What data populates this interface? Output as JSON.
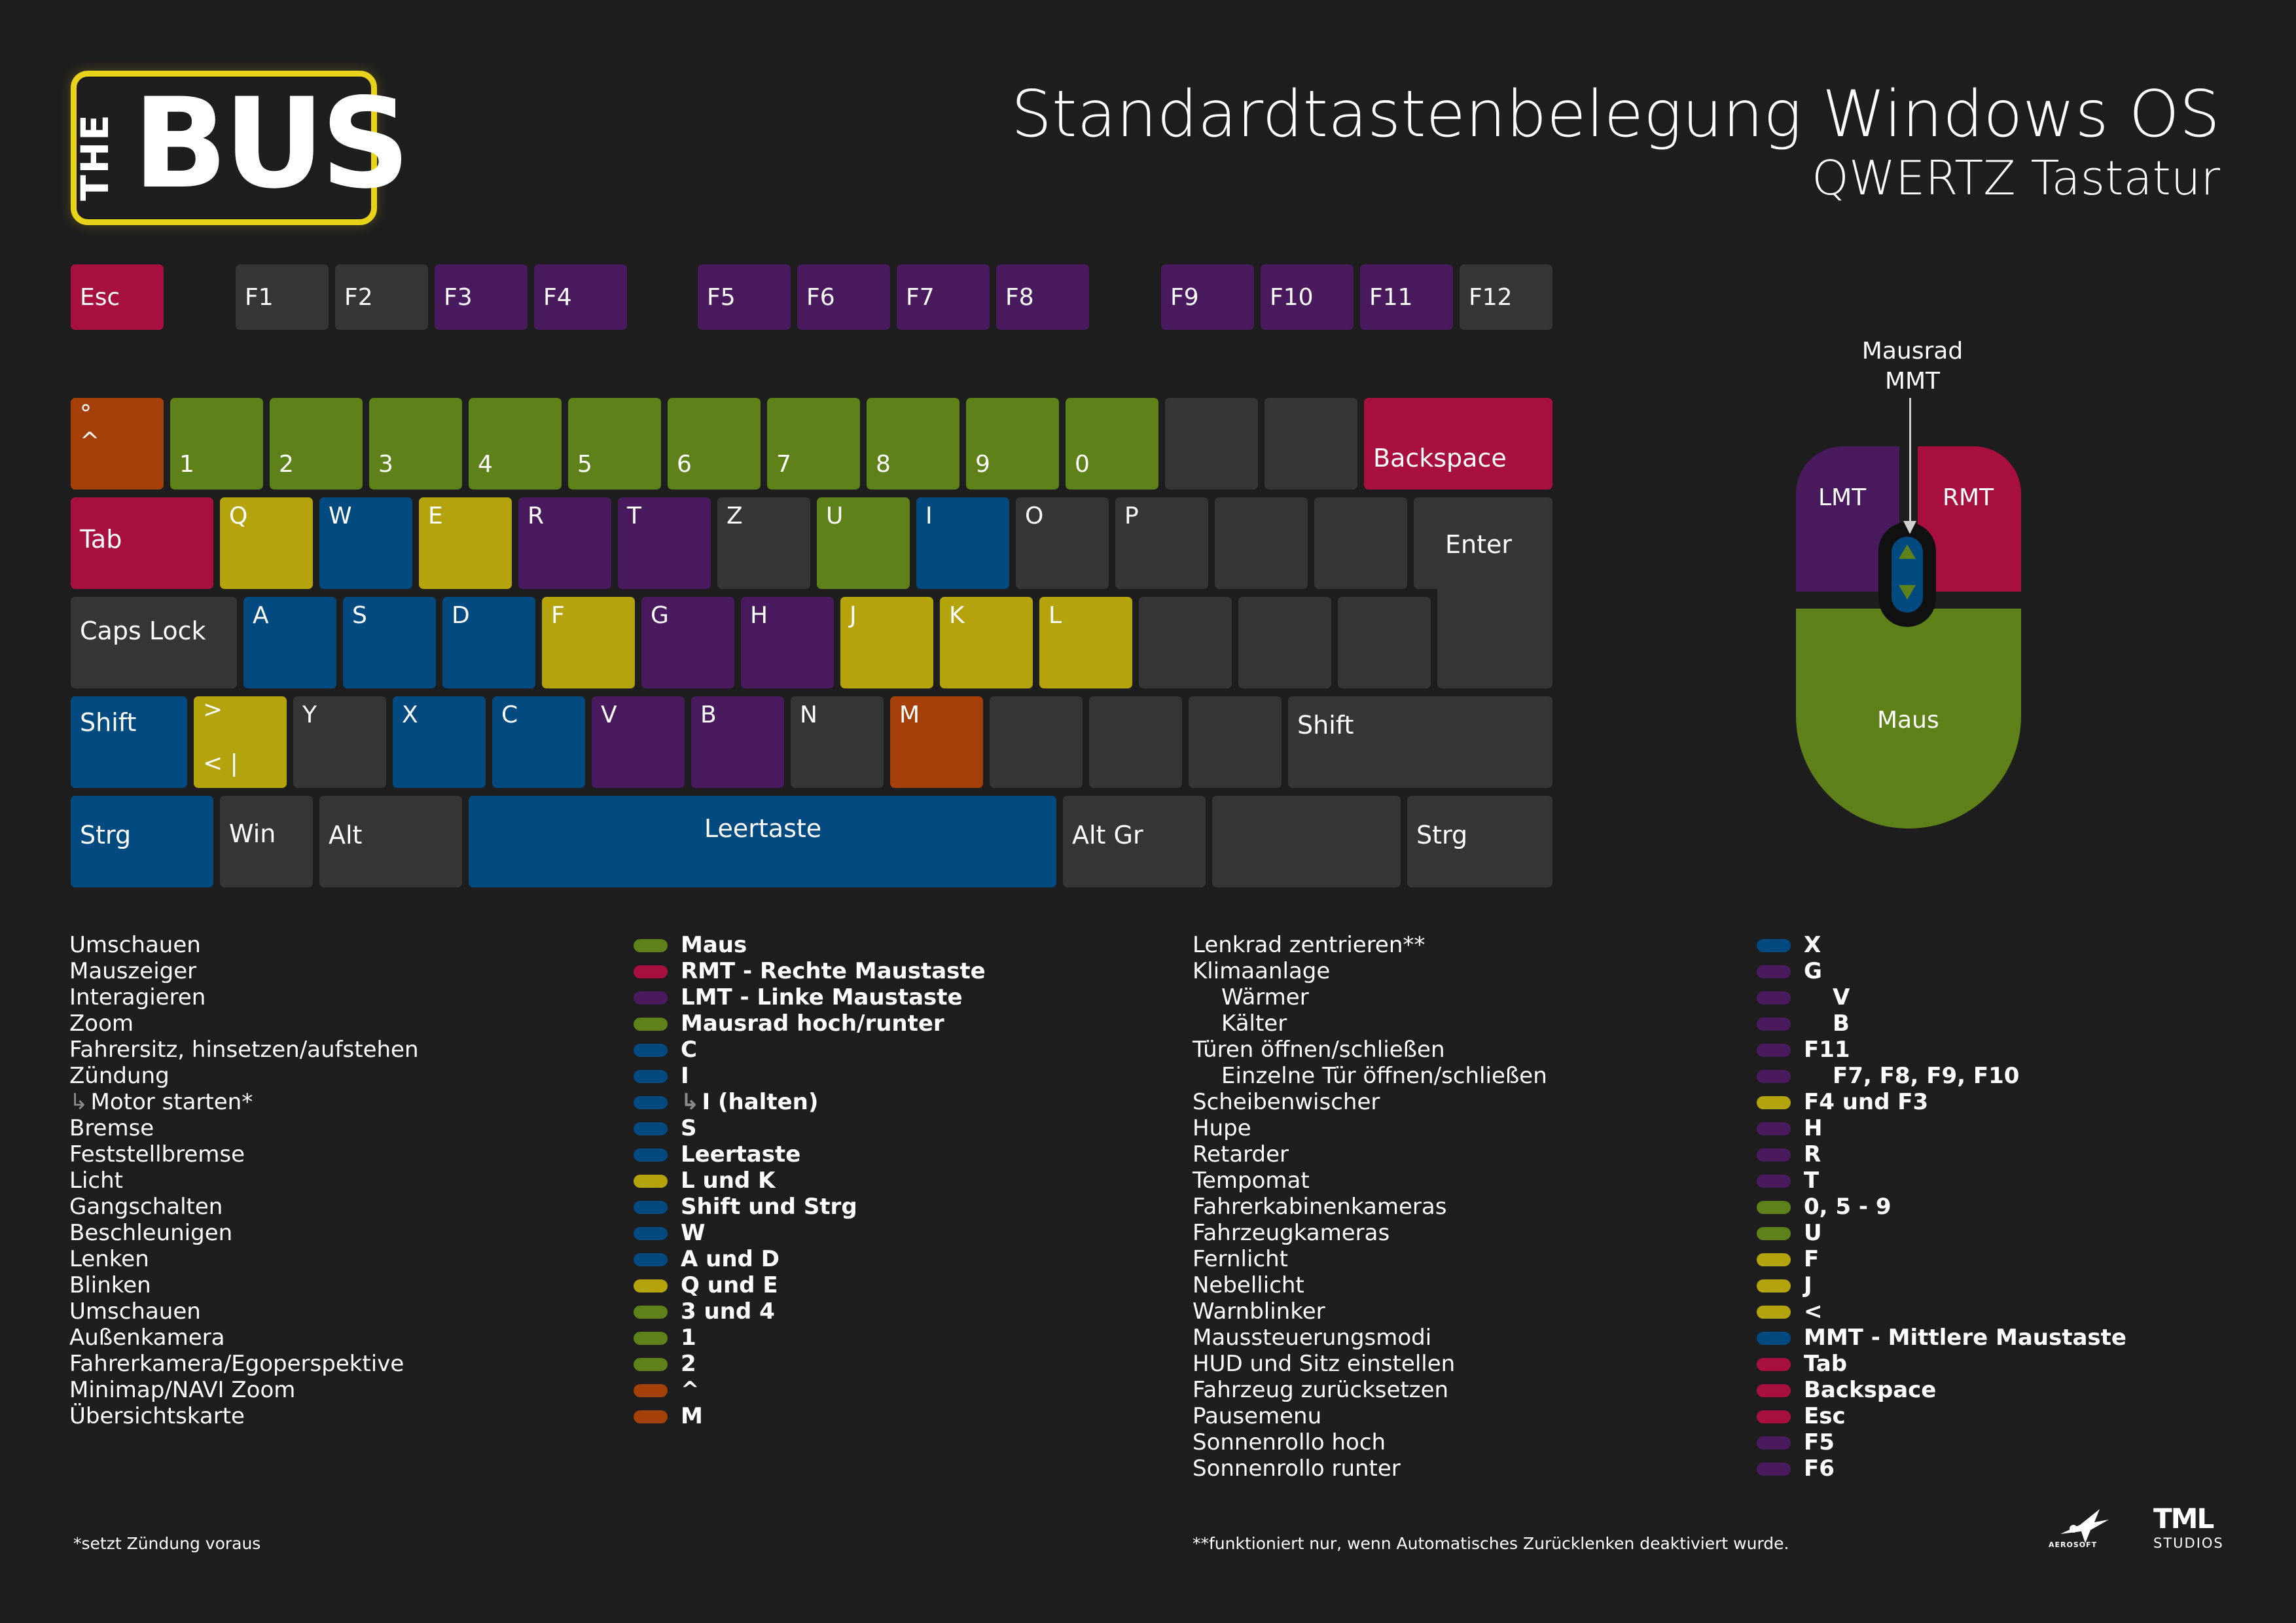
{
  "logo": {
    "the": "THE",
    "bus": "BUS"
  },
  "header": {
    "title": "Standardtastenbelegung Windows OS",
    "subtitle": "QWERTZ Tastatur"
  },
  "colors": {
    "dark": "#373637",
    "red": "#a8103f",
    "purple": "#4a1a5e",
    "green": "#5e8219",
    "blue": "#034a80",
    "yellow": "#b5a30e",
    "orange": "#a5400a",
    "background": "#1f1e1f"
  },
  "keys": {
    "esc": "Esc",
    "f1": "F1",
    "f2": "F2",
    "f3": "F3",
    "f4": "F4",
    "f5": "F5",
    "f6": "F6",
    "f7": "F7",
    "f8": "F8",
    "f9": "F9",
    "f10": "F10",
    "f11": "F11",
    "f12": "F12",
    "caret_top": "°",
    "caret_bottom": "^",
    "n1": "1",
    "n2": "2",
    "n3": "3",
    "n4": "4",
    "n5": "5",
    "n6": "6",
    "n7": "7",
    "n8": "8",
    "n9": "9",
    "n0": "0",
    "backspace": "Backspace",
    "tab": "Tab",
    "q": "Q",
    "w": "W",
    "e": "E",
    "r": "R",
    "t": "T",
    "z": "Z",
    "u": "U",
    "i": "I",
    "o": "O",
    "p": "P",
    "enter": "Enter",
    "capslock": "Caps Lock",
    "a": "A",
    "s": "S",
    "d": "D",
    "f": "F",
    "g": "G",
    "h": "H",
    "j": "J",
    "k": "K",
    "l": "L",
    "shift_left": "Shift",
    "angle_top": ">",
    "angle_bottom": "<  |",
    "y": "Y",
    "x": "X",
    "c": "C",
    "v": "V",
    "b": "B",
    "n": "N",
    "m": "M",
    "shift_right": "Shift",
    "strg_left": "Strg",
    "win": "Win",
    "alt": "Alt",
    "space": "Leertaste",
    "altgr": "Alt Gr",
    "strg_right": "Strg"
  },
  "mouse": {
    "wheel_label": "Mausrad",
    "wheel_abbr": "MMT",
    "lmt": "LMT",
    "rmt": "RMT",
    "body": "Maus"
  },
  "legend_left": [
    {
      "action": "Umschauen",
      "key": "Maus",
      "color": "#5e8219"
    },
    {
      "action": "Mauszeiger",
      "key": "RMT - Rechte Maustaste",
      "color": "#a8103f"
    },
    {
      "action": "Interagieren",
      "key": "LMT - Linke Maustaste",
      "color": "#4a1a5e"
    },
    {
      "action": "Zoom",
      "key": "Mausrad hoch/runter",
      "color": "#5e8219"
    },
    {
      "action": "Fahrersitz, hinsetzen/aufstehen",
      "key": "C",
      "color": "#034a80"
    },
    {
      "action": "Zündung",
      "key": "I",
      "color": "#034a80"
    },
    {
      "action": "Motor starten*",
      "key": "I (halten)",
      "color": "#034a80"
    },
    {
      "action": "Bremse",
      "key": "S",
      "color": "#034a80"
    },
    {
      "action": "Feststellbremse",
      "key": "Leertaste",
      "color": "#034a80"
    },
    {
      "action": "Licht",
      "key": "L und K",
      "color": "#b5a30e"
    },
    {
      "action": "Gangschalten",
      "key": "Shift und Strg",
      "color": "#034a80"
    },
    {
      "action": "Beschleunigen",
      "key": "W",
      "color": "#034a80"
    },
    {
      "action": "Lenken",
      "key": "A und D",
      "color": "#034a80"
    },
    {
      "action": "Blinken",
      "key": "Q und E",
      "color": "#b5a30e"
    },
    {
      "action": "Umschauen",
      "key": "3 und 4",
      "color": "#5e8219"
    },
    {
      "action": "Außenkamera",
      "key": "1",
      "color": "#5e8219"
    },
    {
      "action": "Fahrerkamera/Egoperspektive",
      "key": "2",
      "color": "#5e8219"
    },
    {
      "action": "Minimap/NAVI Zoom",
      "key": "^",
      "color": "#a5400a"
    },
    {
      "action": "Übersichtskarte",
      "key": "M",
      "color": "#a5400a"
    }
  ],
  "legend_right": [
    {
      "action": "Lenkrad zentrieren**",
      "key": "X",
      "color": "#034a80"
    },
    {
      "action": "Klimaanlage",
      "key": "G",
      "color": "#4a1a5e"
    },
    {
      "action": "Wärmer",
      "key": "V",
      "color": "#4a1a5e"
    },
    {
      "action": "Kälter",
      "key": "B",
      "color": "#4a1a5e"
    },
    {
      "action": "Türen öffnen/schließen",
      "key": "F11",
      "color": "#4a1a5e"
    },
    {
      "action": "Einzelne Tür öffnen/schließen",
      "key": "F7, F8, F9, F10",
      "color": "#4a1a5e"
    },
    {
      "action": "Scheibenwischer",
      "key": "F4 und F3",
      "color": "#b5a30e"
    },
    {
      "action": "Hupe",
      "key": "H",
      "color": "#4a1a5e"
    },
    {
      "action": "Retarder",
      "key": "R",
      "color": "#4a1a5e"
    },
    {
      "action": "Tempomat",
      "key": "T",
      "color": "#4a1a5e"
    },
    {
      "action": "Fahrerkabinenkameras",
      "key": "0, 5 - 9",
      "color": "#5e8219"
    },
    {
      "action": "Fahrzeugkameras",
      "key": "U",
      "color": "#5e8219"
    },
    {
      "action": "Fernlicht",
      "key": "F",
      "color": "#b5a30e"
    },
    {
      "action": "Nebellicht",
      "key": "J",
      "color": "#b5a30e"
    },
    {
      "action": "Warnblinker",
      "key": "<",
      "color": "#b5a30e"
    },
    {
      "action": "Maussteuerungsmodi",
      "key": "MMT - Mittlere Maustaste",
      "color": "#034a80"
    },
    {
      "action": "HUD und Sitz einstellen",
      "key": "Tab",
      "color": "#a8103f"
    },
    {
      "action": "Fahrzeug zurücksetzen",
      "key": "Backspace",
      "color": "#a8103f"
    },
    {
      "action": "Pausemenu",
      "key": "Esc",
      "color": "#a8103f"
    },
    {
      "action": "Sonnenrollo hoch",
      "key": "F5",
      "color": "#4a1a5e"
    },
    {
      "action": "Sonnenrollo runter",
      "key": "F6",
      "color": "#4a1a5e"
    }
  ],
  "footnotes": {
    "left": "*setzt Zündung voraus",
    "right": "**funktioniert nur, wenn Automatisches Zurücklenken deaktiviert wurde."
  },
  "brands": {
    "aerosoft": "AEROSOFT",
    "tml": "TML",
    "studios": "STUDIOS"
  }
}
